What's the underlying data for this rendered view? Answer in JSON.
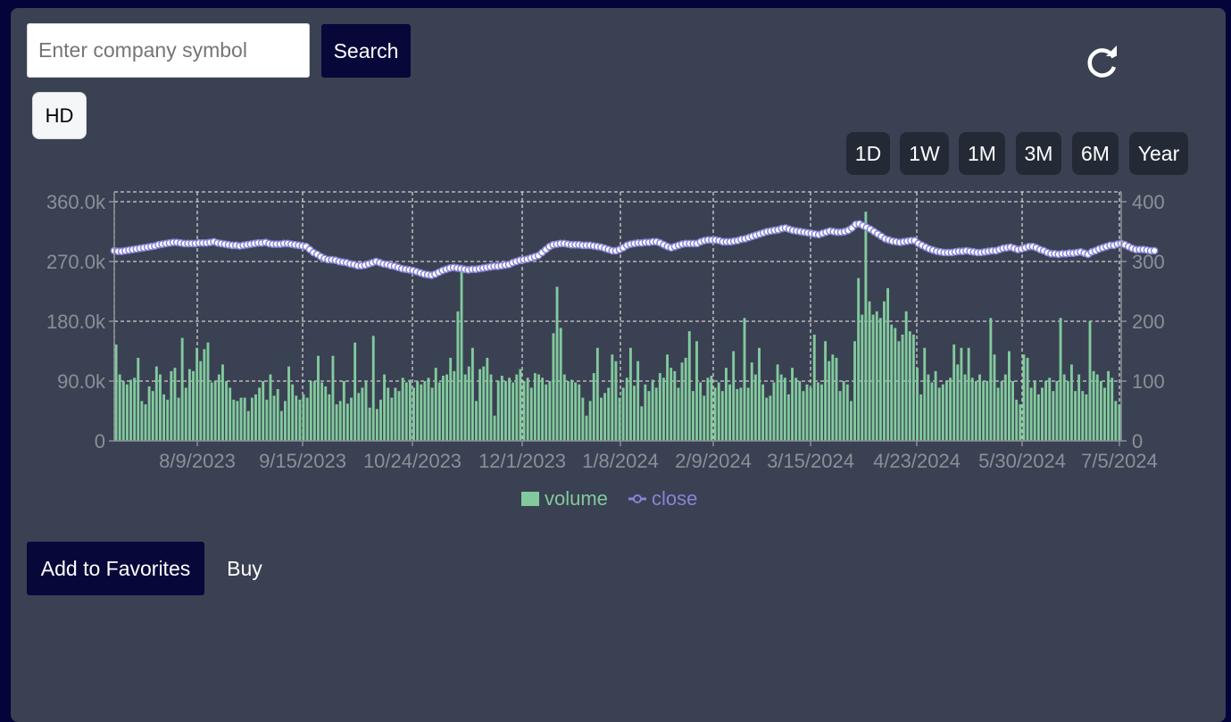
{
  "search": {
    "placeholder": "Enter company symbol",
    "button_label": "Search"
  },
  "refresh_icon": "refresh-icon",
  "hd_label": "HD",
  "ranges": [
    "1D",
    "1W",
    "1M",
    "3M",
    "6M",
    "Year"
  ],
  "actions": {
    "favorites_label": "Add to Favorites",
    "buy_label": "Buy"
  },
  "colors": {
    "volume": "#82ca9d",
    "close": "#8884d8",
    "dots": "#ffffff",
    "panel": "#3a4152",
    "grid": "#d0d0d0"
  },
  "chart_data": {
    "type": "bar+line",
    "x_tick_labels": [
      "8/9/2023",
      "9/15/2023",
      "10/24/2023",
      "12/1/2023",
      "1/8/2024",
      "2/9/2024",
      "3/15/2024",
      "4/23/2024",
      "5/30/2024",
      "7/5/2024"
    ],
    "left_axis": {
      "ticks": [
        "0",
        "90.0k",
        "180.0k",
        "270.0k",
        "360.0k"
      ],
      "ylim": [
        0,
        360000
      ]
    },
    "right_axis": {
      "ticks": [
        "0",
        "100",
        "200",
        "300",
        "400"
      ],
      "ylim": [
        0,
        400
      ]
    },
    "grid": true,
    "legend_position": "bottom",
    "series": [
      {
        "name": "volume",
        "kind": "bar",
        "axis": "left",
        "values": [
          145000,
          100000,
          90000,
          85000,
          92000,
          95000,
          125000,
          60000,
          55000,
          82000,
          75000,
          112000,
          100000,
          70000,
          62000,
          105000,
          110000,
          65000,
          155000,
          80000,
          108000,
          105000,
          140000,
          120000,
          138000,
          148000,
          88000,
          90000,
          100000,
          115000,
          90000,
          80000,
          62000,
          60000,
          65000,
          65000,
          45000,
          65000,
          70000,
          80000,
          90000,
          62000,
          100000,
          68000,
          78000,
          45000,
          60000,
          112000,
          85000,
          68000,
          62000,
          70000,
          65000,
          90000,
          90000,
          128000,
          88000,
          82000,
          70000,
          128000,
          55000,
          60000,
          90000,
          56000,
          65000,
          148000,
          72000,
          80000,
          90000,
          50000,
          158000,
          48000,
          62000,
          100000,
          80000,
          65000,
          80000,
          75000,
          95000,
          88000,
          92000,
          80000,
          90000,
          85000,
          90000,
          95000,
          80000,
          110000,
          88000,
          98000,
          100000,
          125000,
          105000,
          195000,
          265000,
          100000,
          112000,
          140000,
          60000,
          108000,
          112000,
          125000,
          100000,
          38000,
          90000,
          98000,
          90000,
          95000,
          88000,
          100000,
          108000,
          90000,
          95000,
          80000,
          102000,
          100000,
          95000,
          85000,
          90000,
          162000,
          232000,
          170000,
          100000,
          90000,
          92000,
          88000,
          85000,
          65000,
          38000,
          60000,
          102000,
          140000,
          65000,
          72000,
          80000,
          130000,
          120000,
          65000,
          80000,
          95000,
          140000,
          83000,
          120000,
          52000,
          85000,
          75000,
          92000,
          80000,
          102000,
          95000,
          130000,
          110000,
          105000,
          80000,
          118000,
          125000,
          165000,
          75000,
          150000,
          88000,
          68000,
          95000,
          98000,
          80000,
          88000,
          75000,
          110000,
          85000,
          135000,
          78000,
          80000,
          185000,
          80000,
          118000,
          100000,
          140000,
          85000,
          65000,
          68000,
          88000,
          115000,
          100000,
          95000,
          70000,
          110000,
          95000,
          90000,
          75000,
          85000,
          80000,
          160000,
          88000,
          85000,
          150000,
          120000,
          130000,
          125000,
          75000,
          90000,
          85000,
          60000,
          150000,
          245000,
          190000,
          345000,
          210000,
          190000,
          195000,
          185000,
          210000,
          230000,
          175000,
          170000,
          150000,
          160000,
          195000,
          165000,
          160000,
          110000,
          70000,
          140000,
          100000,
          88000,
          105000,
          80000,
          85000,
          90000,
          95000,
          145000,
          115000,
          140000,
          100000,
          140000,
          95000,
          90000,
          100000,
          90000,
          90000,
          185000,
          130000,
          80000,
          90000,
          100000,
          135000,
          90000,
          62000,
          55000,
          130000,
          125000,
          80000,
          90000,
          70000,
          80000,
          90000,
          95000,
          75000,
          90000,
          185000,
          100000,
          90000,
          115000,
          75000,
          100000,
          75000,
          70000,
          180000,
          105000,
          100000,
          90000,
          80000,
          105000,
          95000,
          60000,
          55000
        ]
      },
      {
        "name": "close",
        "kind": "line",
        "axis": "right",
        "values": [
          318,
          317,
          317,
          318,
          319,
          320,
          321,
          322,
          323,
          324,
          325,
          326,
          328,
          329,
          330,
          331,
          332,
          332,
          331,
          330,
          330,
          330,
          330,
          331,
          331,
          331,
          332,
          333,
          331,
          330,
          329,
          328,
          327,
          327,
          326,
          327,
          328,
          329,
          330,
          331,
          331,
          332,
          330,
          329,
          329,
          329,
          330,
          330,
          329,
          328,
          327,
          326,
          325,
          320,
          315,
          312,
          308,
          305,
          303,
          303,
          302,
          300,
          299,
          298,
          296,
          295,
          293,
          293,
          294,
          296,
          298,
          300,
          298,
          296,
          295,
          293,
          292,
          290,
          288,
          287,
          286,
          285,
          283,
          281,
          279,
          278,
          277,
          279,
          282,
          285,
          287,
          289,
          290,
          289,
          288,
          287,
          286,
          287,
          287,
          288,
          289,
          290,
          291,
          292,
          292,
          293,
          294,
          295,
          298,
          300,
          302,
          303,
          304,
          306,
          308,
          310,
          315,
          320,
          325,
          328,
          329,
          330,
          330,
          329,
          328,
          328,
          328,
          327,
          327,
          327,
          326,
          325,
          324,
          322,
          320,
          318,
          318,
          320,
          323,
          327,
          329,
          330,
          331,
          331,
          332,
          332,
          333,
          333,
          331,
          328,
          325,
          323,
          325,
          327,
          329,
          330,
          330,
          330,
          330,
          333,
          335,
          336,
          336,
          336,
          335,
          333,
          333,
          333,
          334,
          335,
          337,
          338,
          340,
          342,
          344,
          346,
          348,
          350,
          351,
          352,
          353,
          355,
          356,
          354,
          352,
          351,
          350,
          349,
          348,
          347,
          346,
          345,
          347,
          349,
          351,
          350,
          349,
          349,
          350,
          352,
          356,
          362,
          363,
          360,
          357,
          354,
          350,
          346,
          342,
          338,
          336,
          334,
          333,
          332,
          333,
          334,
          335,
          335,
          330,
          327,
          324,
          321,
          319,
          317,
          316,
          315,
          315,
          315,
          316,
          317,
          317,
          318,
          317,
          316,
          315,
          315,
          316,
          317,
          318,
          318,
          320,
          322,
          323,
          324,
          322,
          320,
          321,
          323,
          325,
          325,
          323,
          320,
          318,
          315,
          313,
          313,
          312,
          313,
          313,
          314,
          314,
          315,
          316,
          314,
          312,
          316,
          318,
          321,
          323,
          325,
          327,
          327,
          329,
          330,
          328,
          325,
          322,
          320,
          320,
          320,
          319,
          318,
          318
        ]
      }
    ]
  }
}
